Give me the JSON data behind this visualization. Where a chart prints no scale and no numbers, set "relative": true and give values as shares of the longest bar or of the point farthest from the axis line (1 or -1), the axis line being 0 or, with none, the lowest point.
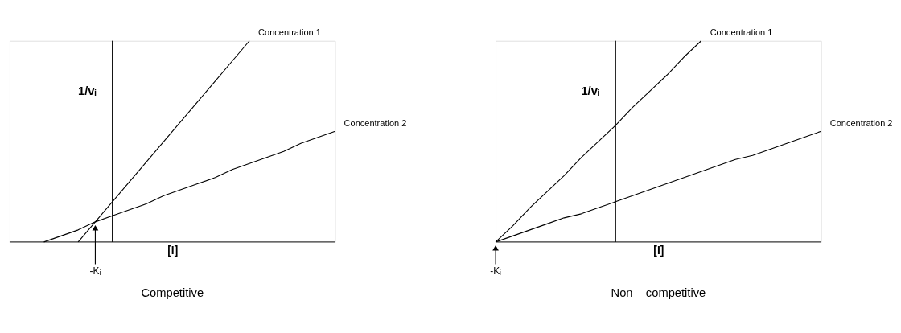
{
  "chart_data": [
    {
      "type": "line",
      "title": "Competitive",
      "xlabel": "[I]",
      "ylabel": "1/vᵢ",
      "relative": true,
      "tick_labels": false,
      "marker": "none",
      "line_style": "solid",
      "categories": [
        null,
        null,
        null,
        null,
        null,
        null,
        null,
        null,
        null,
        null,
        null,
        null,
        null,
        null,
        null,
        null,
        null,
        null,
        null,
        null
      ],
      "annotations": [
        "-Kᵢ"
      ],
      "series": [
        {
          "name": "Concentration 1",
          "color": "#000000",
          "values": [
            null,
            null,
            null,
            null,
            0,
            0.1,
            0.2,
            0.3,
            0.4,
            0.5,
            0.6,
            0.7,
            0.8,
            0.9,
            1.0,
            null,
            null,
            null,
            null,
            null
          ]
        },
        {
          "name": "Concentration 2",
          "color": "#000000",
          "values": [
            null,
            null,
            0,
            0.03,
            0.06,
            0.1,
            0.13,
            0.16,
            0.19,
            0.23,
            0.26,
            0.29,
            0.32,
            0.36,
            0.39,
            0.42,
            0.45,
            0.49,
            0.52,
            0.55
          ]
        }
      ]
    },
    {
      "type": "line",
      "title": "Non – competitive",
      "xlabel": "[I]",
      "ylabel": "1/vᵢ",
      "relative": true,
      "tick_labels": false,
      "marker": "none",
      "line_style": "solid",
      "categories": [
        null,
        null,
        null,
        null,
        null,
        null,
        null,
        null,
        null,
        null,
        null,
        null,
        null,
        null,
        null,
        null,
        null,
        null,
        null,
        null
      ],
      "annotations": [
        "-Kᵢ"
      ],
      "series": [
        {
          "name": "Concentration 1",
          "color": "#000000",
          "values": [
            0,
            0.08,
            0.17,
            0.25,
            0.33,
            0.42,
            0.5,
            0.58,
            0.67,
            0.75,
            0.83,
            0.92,
            1.0,
            null,
            null,
            null,
            null,
            null,
            null,
            null
          ]
        },
        {
          "name": "Concentration 2",
          "color": "#000000",
          "values": [
            0,
            0.03,
            0.06,
            0.09,
            0.12,
            0.14,
            0.17,
            0.2,
            0.23,
            0.26,
            0.29,
            0.32,
            0.35,
            0.38,
            0.41,
            0.43,
            0.46,
            0.49,
            0.52,
            0.55
          ]
        }
      ]
    }
  ]
}
